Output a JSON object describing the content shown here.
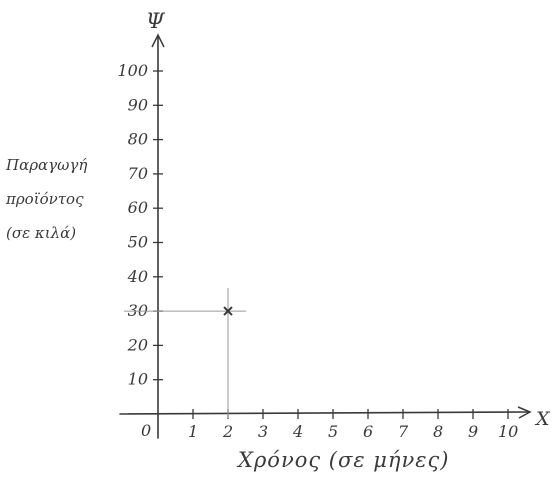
{
  "chart_data": {
    "type": "scatter",
    "x_axis_name": "X",
    "y_axis_name": "Ψ",
    "xlabel": "Χρόνος (σε μήνες)",
    "ylabel_lines": [
      "Παραγωγή",
      "προϊόντος",
      "(σε κιλά)"
    ],
    "origin_label": "0",
    "xticks": [
      1,
      2,
      3,
      4,
      5,
      6,
      7,
      8,
      9,
      10
    ],
    "yticks": [
      10,
      20,
      30,
      40,
      50,
      60,
      70,
      80,
      90,
      100
    ],
    "xlim": [
      0,
      10
    ],
    "ylim": [
      0,
      100
    ],
    "points": [
      {
        "x": 2,
        "y": 30
      }
    ],
    "guide_lines": true,
    "grid": false,
    "colors": {
      "ink": "#3a3a3a",
      "guide": "#9a9a9a"
    }
  }
}
